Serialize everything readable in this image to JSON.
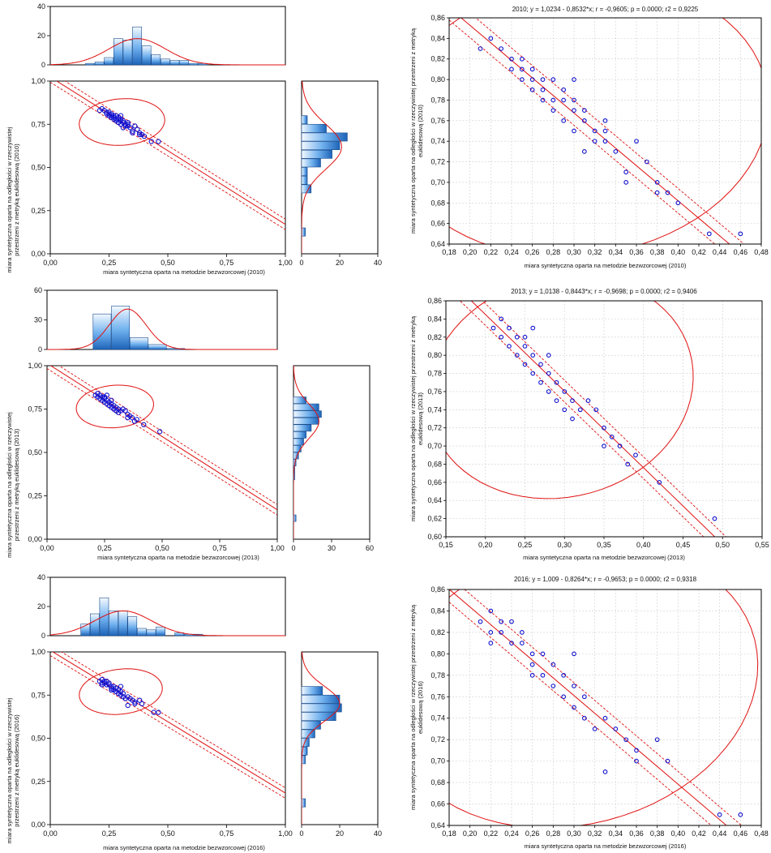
{
  "colors": {
    "points": "#1010d0",
    "fit": "#e01010",
    "bars": "#4a90d9"
  },
  "chart_data": [
    {
      "type": "scatter",
      "panel": "matrix-2010",
      "xlabel": "miara syntetyczna oparta na metodzie bezwzorcowej (2010)",
      "ylabel": [
        "miara syntetyczna oparta na odległości w rzeczywistej",
        "przestrzeni z metryką euklidesową (2010)"
      ],
      "xticks": [
        "0,00",
        "0,25",
        "0,50",
        "0,75",
        "1,00"
      ],
      "yticks": [
        "0,00",
        "0,25",
        "0,50",
        "0,75",
        "1,00"
      ],
      "xlim": [
        0,
        1
      ],
      "ylim": [
        0,
        1
      ],
      "fit": {
        "intercept": 1.0234,
        "slope": -0.8532
      },
      "top_hist": {
        "ylim": [
          0,
          40
        ],
        "ticks": [
          "0",
          "20",
          "40"
        ],
        "bins": [
          0.15,
          0.19,
          0.23,
          0.27,
          0.31,
          0.35,
          0.39,
          0.43,
          0.47,
          0.51,
          0.55,
          0.59,
          0.63,
          0.67,
          0.71,
          0.75
        ],
        "counts": [
          1,
          2,
          5,
          18,
          17,
          26,
          13,
          7,
          4,
          3,
          3,
          1,
          1,
          0,
          0
        ],
        "density_mean": 0.37,
        "density_sd": 0.12,
        "density_peak": 18
      },
      "right_hist": {
        "xlim": [
          0,
          40
        ],
        "ticks": [
          "0",
          "20",
          "40"
        ],
        "bins": [
          0.1,
          0.15,
          0.2,
          0.25,
          0.3,
          0.35,
          0.4,
          0.45,
          0.5,
          0.55,
          0.6,
          0.65,
          0.7,
          0.75,
          0.8,
          0.85
        ],
        "counts": [
          2,
          0,
          0,
          0,
          0,
          5,
          3,
          3,
          10,
          16,
          20,
          24,
          13,
          3,
          0
        ],
        "density_mean": 0.62,
        "density_sd": 0.13,
        "density_peak": 21
      },
      "points": [
        [
          0.21,
          0.83
        ],
        [
          0.22,
          0.84
        ],
        [
          0.23,
          0.83
        ],
        [
          0.24,
          0.82
        ],
        [
          0.24,
          0.81
        ],
        [
          0.25,
          0.82
        ],
        [
          0.25,
          0.81
        ],
        [
          0.25,
          0.8
        ],
        [
          0.26,
          0.81
        ],
        [
          0.26,
          0.8
        ],
        [
          0.26,
          0.79
        ],
        [
          0.27,
          0.8
        ],
        [
          0.27,
          0.79
        ],
        [
          0.27,
          0.78
        ],
        [
          0.28,
          0.8
        ],
        [
          0.28,
          0.78
        ],
        [
          0.28,
          0.77
        ],
        [
          0.29,
          0.79
        ],
        [
          0.29,
          0.78
        ],
        [
          0.29,
          0.76
        ],
        [
          0.3,
          0.78
        ],
        [
          0.3,
          0.77
        ],
        [
          0.3,
          0.75
        ],
        [
          0.31,
          0.77
        ],
        [
          0.31,
          0.76
        ],
        [
          0.32,
          0.75
        ],
        [
          0.32,
          0.74
        ],
        [
          0.33,
          0.75
        ],
        [
          0.33,
          0.74
        ],
        [
          0.34,
          0.73
        ],
        [
          0.35,
          0.71
        ],
        [
          0.35,
          0.7
        ],
        [
          0.37,
          0.72
        ],
        [
          0.38,
          0.7
        ],
        [
          0.38,
          0.69
        ],
        [
          0.39,
          0.69
        ],
        [
          0.4,
          0.68
        ],
        [
          0.43,
          0.65
        ],
        [
          0.46,
          0.65
        ],
        [
          0.3,
          0.8
        ],
        [
          0.31,
          0.73
        ],
        [
          0.33,
          0.76
        ],
        [
          0.36,
          0.74
        ]
      ]
    },
    {
      "type": "scatter",
      "panel": "zoom-2010",
      "title": "2010; y = 1,0234 - 0,8532*x; r = -0,9605; p = 0.0000; r2 = 0,9225",
      "xlabel": "miara syntetyczna oparta na metodzie bezwzorcowej (2010)",
      "ylabel": [
        "miara syntetyczna oparta na odległości w rzeczywistej przestrzeni z metryką",
        "euklidesową (2010)"
      ],
      "xlim": [
        0.18,
        0.48
      ],
      "xstep": 0.02,
      "ylim": [
        0.64,
        0.86
      ],
      "ystep": 0.02,
      "fit": {
        "intercept": 1.0234,
        "slope": -0.8532
      },
      "ellipse": {
        "cx": 0.305,
        "cy": 0.763,
        "rx": 0.175,
        "ry": 0.024,
        "angle_deg": -39
      }
    },
    {
      "type": "scatter",
      "panel": "matrix-2013",
      "xlabel": "miara syntetyczna oparta na metodzie bezwzorcowej (2013)",
      "ylabel": [
        "miara syntetyczna oparta na odległości w rzeczywistej",
        "przestrzeni z metryką euklidesową (2013)"
      ],
      "xticks": [
        "0,00",
        "0,25",
        "0,50",
        "0,75",
        "1,00"
      ],
      "yticks": [
        "0,00",
        "0,25",
        "0,50",
        "0,75",
        "1,00"
      ],
      "xlim": [
        0,
        1
      ],
      "ylim": [
        0,
        1
      ],
      "fit": {
        "intercept": 1.0138,
        "slope": -0.8443
      },
      "top_hist": {
        "ylim": [
          0,
          60
        ],
        "ticks": [
          "0",
          "30",
          "60"
        ],
        "bins": [
          0.2,
          0.28,
          0.36,
          0.44,
          0.52,
          0.6
        ],
        "counts": [
          36,
          44,
          12,
          5,
          1
        ],
        "density_mean": 0.35,
        "density_sd": 0.08,
        "density_peak": 41
      },
      "right_hist": {
        "xlim": [
          0,
          60
        ],
        "ticks": [
          "0",
          "30",
          "60"
        ],
        "bins": [
          0.1,
          0.14,
          0.18,
          0.22,
          0.26,
          0.3,
          0.34,
          0.38,
          0.42,
          0.46,
          0.5,
          0.54,
          0.58,
          0.62,
          0.66,
          0.7,
          0.74,
          0.78,
          0.82
        ],
        "counts": [
          2,
          0,
          0,
          0,
          0,
          0,
          1,
          1,
          2,
          4,
          6,
          8,
          10,
          14,
          20,
          22,
          20,
          10
        ],
        "density_mean": 0.68,
        "density_sd": 0.1,
        "density_peak": 20
      },
      "points": [
        [
          0.21,
          0.83
        ],
        [
          0.22,
          0.84
        ],
        [
          0.22,
          0.82
        ],
        [
          0.23,
          0.83
        ],
        [
          0.23,
          0.81
        ],
        [
          0.24,
          0.82
        ],
        [
          0.24,
          0.8
        ],
        [
          0.25,
          0.82
        ],
        [
          0.25,
          0.81
        ],
        [
          0.25,
          0.79
        ],
        [
          0.26,
          0.8
        ],
        [
          0.26,
          0.78
        ],
        [
          0.27,
          0.79
        ],
        [
          0.27,
          0.77
        ],
        [
          0.28,
          0.78
        ],
        [
          0.28,
          0.76
        ],
        [
          0.29,
          0.77
        ],
        [
          0.29,
          0.75
        ],
        [
          0.3,
          0.76
        ],
        [
          0.3,
          0.74
        ],
        [
          0.31,
          0.75
        ],
        [
          0.31,
          0.73
        ],
        [
          0.32,
          0.74
        ],
        [
          0.33,
          0.75
        ],
        [
          0.34,
          0.74
        ],
        [
          0.35,
          0.72
        ],
        [
          0.35,
          0.7
        ],
        [
          0.36,
          0.71
        ],
        [
          0.37,
          0.7
        ],
        [
          0.38,
          0.68
        ],
        [
          0.39,
          0.69
        ],
        [
          0.42,
          0.66
        ],
        [
          0.49,
          0.62
        ],
        [
          0.26,
          0.83
        ],
        [
          0.28,
          0.8
        ]
      ]
    },
    {
      "type": "scatter",
      "panel": "zoom-2013",
      "title": "2013; y = 1,0138 - 0,8443*x; r = -0,9698; p = 0.0000; r2 = 0,9406",
      "xlabel": "miara syntetyczna oparta na metodzie bezwzorcowej (2013)",
      "ylabel": [
        "miara syntetyczna oparta na odległości w rzeczywistej przestrzeni z metryką",
        "euklidesową (2013)"
      ],
      "xlim": [
        0.15,
        0.55
      ],
      "xstep": 0.05,
      "ylim": [
        0.6,
        0.86
      ],
      "ystep": 0.02,
      "fit": {
        "intercept": 1.0138,
        "slope": -0.8443
      },
      "ellipse": {
        "cx": 0.295,
        "cy": 0.765,
        "rx": 0.16,
        "ry": 0.022,
        "angle_deg": -44
      }
    },
    {
      "type": "scatter",
      "panel": "matrix-2016",
      "xlabel": "miara syntetyczna oparta na metodzie bezwzorcowej (2016)",
      "ylabel": [
        "miara syntetyczna oparta na odległości w rzeczywistej",
        "przestrzeni z metryką euklidesową (2016)"
      ],
      "xticks": [
        "0,00",
        "0,25",
        "0,50",
        "0,75",
        "1,00"
      ],
      "yticks": [
        "0,00",
        "0,25",
        "0,50",
        "0,75",
        "1,00"
      ],
      "xlim": [
        0,
        1
      ],
      "ylim": [
        0,
        1
      ],
      "fit": {
        "intercept": 1.009,
        "slope": -0.8264
      },
      "top_hist": {
        "ylim": [
          0,
          40
        ],
        "ticks": [
          "0",
          "20",
          "40"
        ],
        "bins": [
          0.13,
          0.17,
          0.21,
          0.25,
          0.29,
          0.33,
          0.37,
          0.41,
          0.45,
          0.49,
          0.53,
          0.57,
          0.61,
          0.65
        ],
        "counts": [
          8,
          15,
          26,
          17,
          17,
          13,
          5,
          4,
          6,
          0,
          2,
          1,
          1
        ],
        "density_mean": 0.31,
        "density_sd": 0.12,
        "density_peak": 17
      },
      "right_hist": {
        "xlim": [
          0,
          40
        ],
        "ticks": [
          "0",
          "20",
          "40"
        ],
        "bins": [
          0.1,
          0.15,
          0.2,
          0.25,
          0.3,
          0.35,
          0.4,
          0.45,
          0.5,
          0.55,
          0.6,
          0.65,
          0.7,
          0.75,
          0.8,
          0.85
        ],
        "counts": [
          2,
          0,
          0,
          0,
          0,
          2,
          3,
          4,
          7,
          10,
          18,
          21,
          20,
          11,
          0
        ],
        "density_mean": 0.7,
        "density_sd": 0.1,
        "density_peak": 20
      },
      "points": [
        [
          0.21,
          0.83
        ],
        [
          0.22,
          0.84
        ],
        [
          0.22,
          0.82
        ],
        [
          0.22,
          0.81
        ],
        [
          0.23,
          0.83
        ],
        [
          0.23,
          0.82
        ],
        [
          0.24,
          0.81
        ],
        [
          0.24,
          0.83
        ],
        [
          0.25,
          0.82
        ],
        [
          0.25,
          0.81
        ],
        [
          0.26,
          0.8
        ],
        [
          0.26,
          0.79
        ],
        [
          0.27,
          0.8
        ],
        [
          0.27,
          0.78
        ],
        [
          0.28,
          0.79
        ],
        [
          0.28,
          0.77
        ],
        [
          0.29,
          0.78
        ],
        [
          0.29,
          0.76
        ],
        [
          0.3,
          0.77
        ],
        [
          0.3,
          0.75
        ],
        [
          0.31,
          0.76
        ],
        [
          0.31,
          0.74
        ],
        [
          0.32,
          0.73
        ],
        [
          0.33,
          0.74
        ],
        [
          0.33,
          0.69
        ],
        [
          0.34,
          0.73
        ],
        [
          0.35,
          0.72
        ],
        [
          0.36,
          0.71
        ],
        [
          0.36,
          0.7
        ],
        [
          0.38,
          0.72
        ],
        [
          0.39,
          0.7
        ],
        [
          0.44,
          0.65
        ],
        [
          0.46,
          0.65
        ],
        [
          0.26,
          0.78
        ],
        [
          0.3,
          0.8
        ]
      ]
    },
    {
      "type": "scatter",
      "panel": "zoom-2016",
      "title": "2016;  y = 1,009 - 0,8264*x;  r = -0,9653; p = 0.0000; r2 = 0,9318",
      "xlabel": "miara syntetyczna oparta na metodzie bezwzorcowej (2016)",
      "ylabel": [
        "miara syntetyczna oparta na odległości w rzeczywistej przestrzeni z metryką",
        "euklidesową (2016)"
      ],
      "xlim": [
        0.18,
        0.48
      ],
      "xstep": 0.02,
      "ylim": [
        0.64,
        0.86
      ],
      "ystep": 0.02,
      "fit": {
        "intercept": 1.009,
        "slope": -0.8264
      },
      "ellipse": {
        "cx": 0.3,
        "cy": 0.77,
        "rx": 0.165,
        "ry": 0.024,
        "angle_deg": -40
      }
    }
  ]
}
